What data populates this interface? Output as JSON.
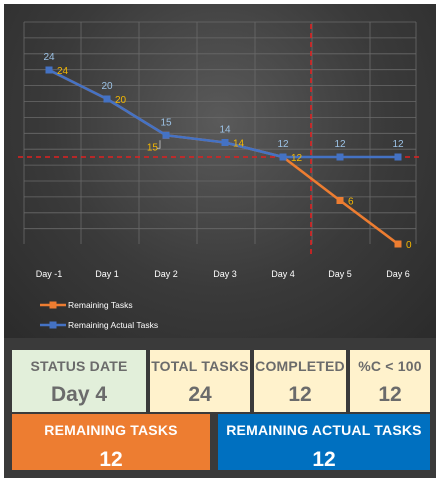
{
  "chart_data": {
    "type": "line",
    "categories": [
      "Day -1",
      "Day 1",
      "Day 2",
      "Day 3",
      "Day 4",
      "Day 5",
      "Day 6"
    ],
    "series": [
      {
        "name": "Remaining Tasks",
        "color": "#ed7d31",
        "values": [
          24,
          20,
          15,
          14,
          12,
          6,
          0
        ]
      },
      {
        "name": "Remaining Actual Tasks",
        "color": "#4472c4",
        "values": [
          24,
          20,
          15,
          14,
          12,
          12,
          12
        ]
      }
    ],
    "ylim": [
      0,
      24
    ],
    "grid": true,
    "legend": "bottom-left",
    "reference_lines": {
      "status_category": "Day 4",
      "status_value": 12,
      "color": "#e02020"
    }
  },
  "cards": {
    "status_date": {
      "title": "STATUS DATE",
      "value": "Day 4",
      "bg": "#e2efda"
    },
    "total_tasks": {
      "title": "TOTAL TASKS",
      "value": "24",
      "bg": "#fff2cc"
    },
    "completed": {
      "title": "COMPLETED",
      "value": "12",
      "bg": "#fff2cc"
    },
    "pct_complete": {
      "title": "%C < 100",
      "value": "12",
      "bg": "#fff2cc"
    },
    "remaining_tasks": {
      "title": "REMAINING TASKS",
      "value": "12",
      "bg": "#ed7d31"
    },
    "remaining_actual": {
      "title": "REMAINING ACTUAL TASKS",
      "value": "12",
      "bg": "#0070c0"
    }
  },
  "colors": {
    "panel": "#3a3a3a",
    "axis_label": "#ffffff",
    "grid": "#6a6a6a"
  }
}
